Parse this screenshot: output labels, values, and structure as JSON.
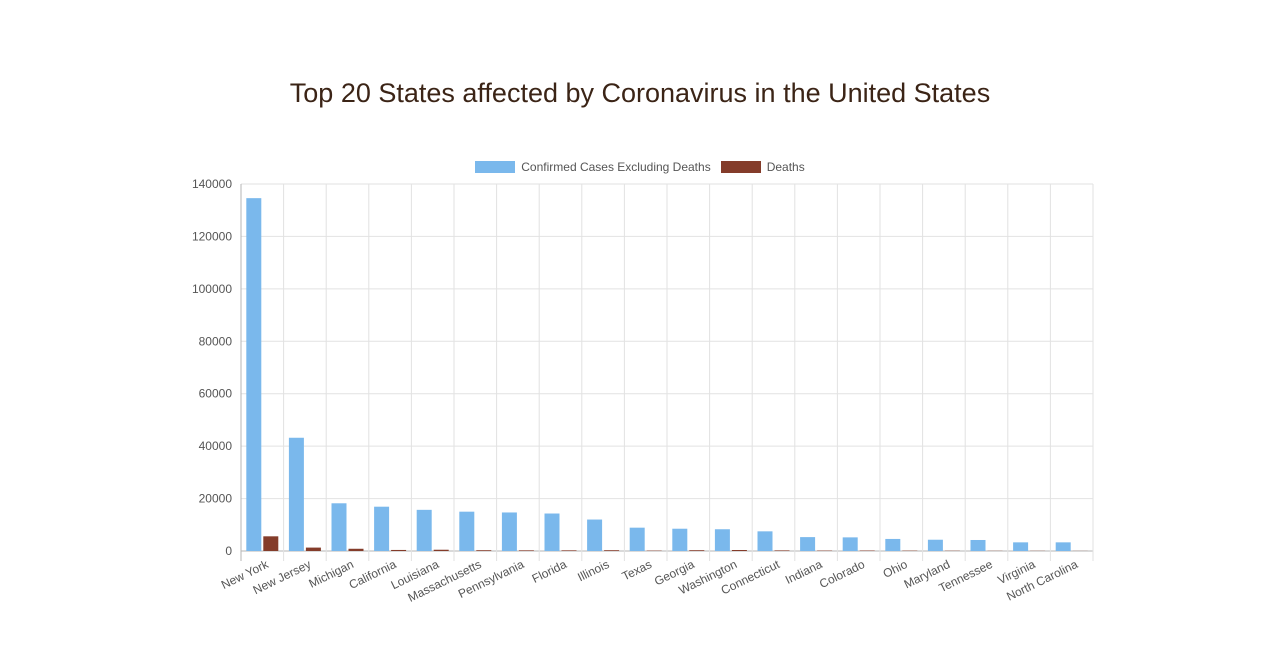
{
  "page": {
    "title": "Top 20 States affected by Coronavirus in the United States"
  },
  "colors": {
    "confirmed": "#7ab8ec",
    "deaths": "#843c2a",
    "grid": "#e2e2e2",
    "text": "#555555"
  },
  "chart_data": {
    "type": "bar",
    "title": "Top 20 States affected by Coronavirus in the United States",
    "xlabel": "",
    "ylabel": "",
    "ylim": [
      0,
      140000
    ],
    "yticks": [
      0,
      20000,
      40000,
      60000,
      80000,
      100000,
      120000,
      140000
    ],
    "grid": true,
    "legend_position": "top",
    "categories": [
      "New York",
      "New Jersey",
      "Michigan",
      "California",
      "Louisiana",
      "Massachusetts",
      "Pennsylvania",
      "Florida",
      "Illinois",
      "Texas",
      "Georgia",
      "Washington",
      "Connecticut",
      "Indiana",
      "Colorado",
      "Ohio",
      "Maryland",
      "Tennessee",
      "Virginia",
      "North Carolina"
    ],
    "series": [
      {
        "name": "Confirmed Cases Excluding Deaths",
        "color": "#7ab8ec",
        "values": [
          134600,
          43200,
          18200,
          16900,
          15700,
          15000,
          14700,
          14300,
          12000,
          8900,
          8500,
          8300,
          7500,
          5300,
          5200,
          4600,
          4300,
          4200,
          3300,
          3300
        ]
      },
      {
        "name": "Deaths",
        "color": "#843c2a",
        "values": [
          5600,
          1300,
          850,
          400,
          480,
          300,
          250,
          250,
          300,
          150,
          300,
          380,
          230,
          160,
          180,
          140,
          100,
          70,
          70,
          40
        ]
      }
    ]
  }
}
